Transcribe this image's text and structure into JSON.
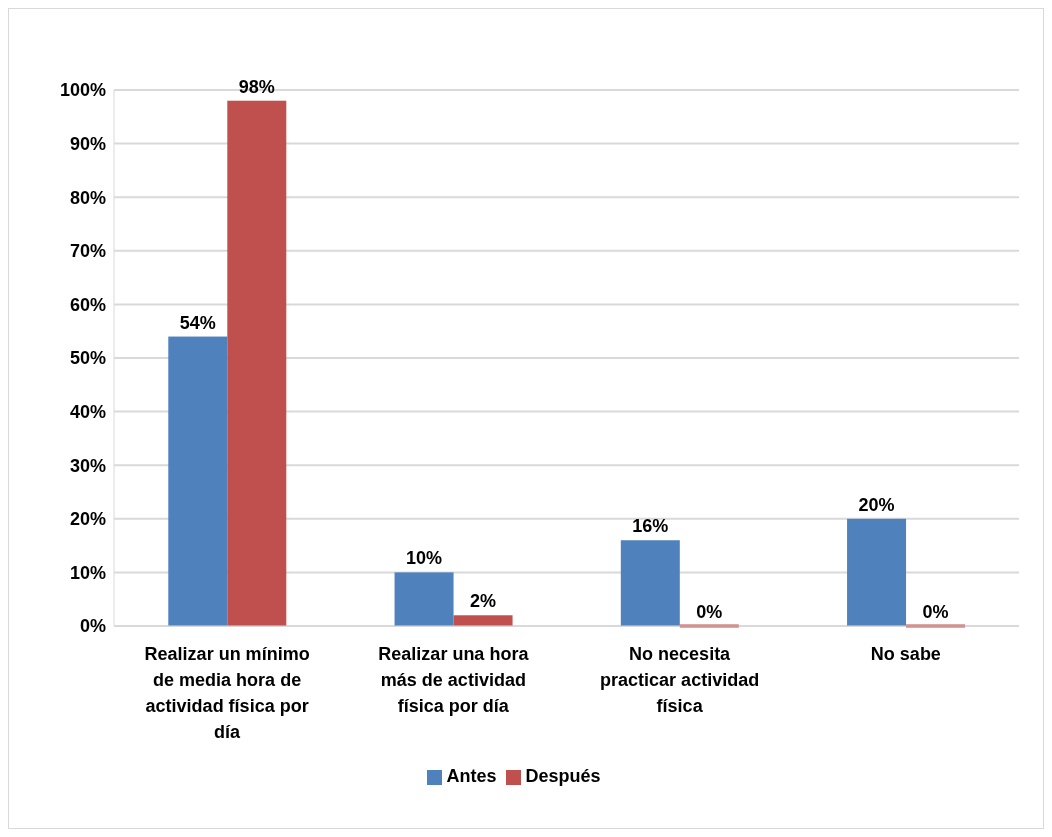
{
  "chart_data": {
    "type": "bar",
    "categories": [
      "Realizar un mínimo de media hora de actividad física por día",
      "Realizar una hora más de actividad física por día",
      "No necesita practicar actividad física",
      "No sabe"
    ],
    "series": [
      {
        "name": "Antes",
        "color": "#4f81bd",
        "values": [
          54,
          10,
          16,
          20
        ],
        "value_labels": [
          "54%",
          "10%",
          "16%",
          "20%"
        ]
      },
      {
        "name": "Después",
        "color": "#c0504d",
        "values": [
          98,
          2,
          0,
          0
        ],
        "value_labels": [
          "98%",
          "2%",
          "0%",
          "0%"
        ]
      }
    ],
    "ylim": [
      0,
      100
    ],
    "yticks": [
      {
        "value": 0,
        "label": "0%"
      },
      {
        "value": 10,
        "label": "10%"
      },
      {
        "value": 20,
        "label": "20%"
      },
      {
        "value": 30,
        "label": "30%"
      },
      {
        "value": 40,
        "label": "40%"
      },
      {
        "value": 50,
        "label": "50%"
      },
      {
        "value": 60,
        "label": "60%"
      },
      {
        "value": 70,
        "label": "70%"
      },
      {
        "value": 80,
        "label": "80%"
      },
      {
        "value": 90,
        "label": "90%"
      },
      {
        "value": 100,
        "label": "100%"
      }
    ],
    "grid": "y",
    "legend": "bottom"
  }
}
